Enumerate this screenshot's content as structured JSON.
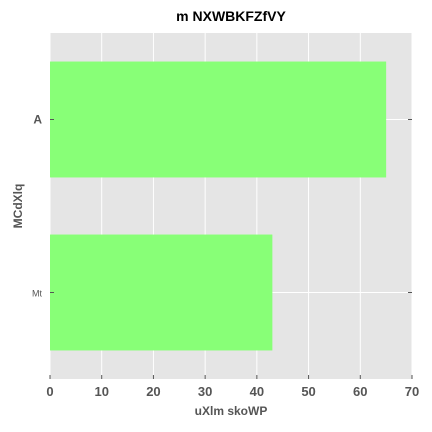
{
  "chart_data": {
    "type": "bar",
    "orientation": "horizontal",
    "title": "m NXWBKFZfVY",
    "xlabel": "uXlm skoWP",
    "ylabel": "MCdXlq",
    "categories": [
      "A",
      "Mt"
    ],
    "values": [
      65,
      43
    ],
    "xlim": [
      0,
      70
    ],
    "xticks": [
      "0",
      "10",
      "20",
      "30",
      "40",
      "50",
      "60",
      "70"
    ],
    "grid": true,
    "colors": {
      "bar": "#88ff77",
      "background": "#e5e5e5",
      "grid": "#ffffff"
    }
  }
}
